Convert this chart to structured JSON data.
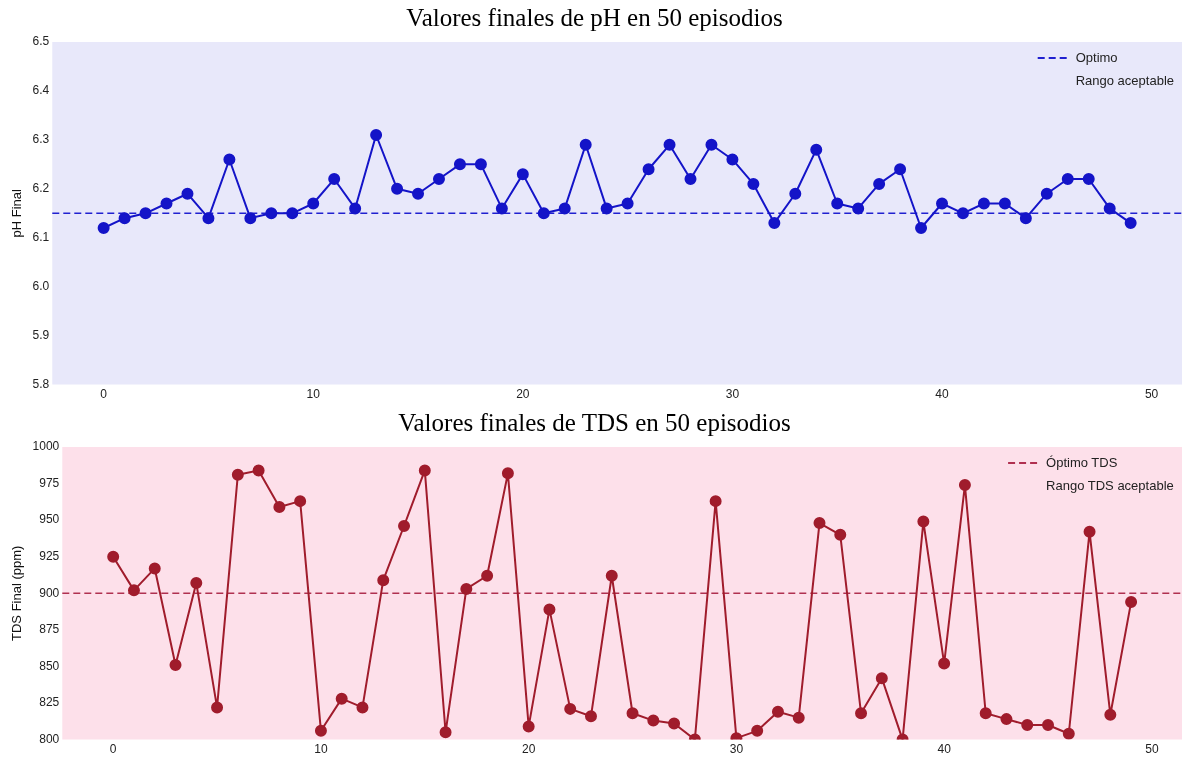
{
  "chart_data": [
    {
      "type": "line",
      "title": "Valores finales de pH en 50 episodios",
      "ylabel": "pH Final",
      "x": [
        0,
        1,
        2,
        3,
        4,
        5,
        6,
        7,
        8,
        9,
        10,
        11,
        12,
        13,
        14,
        15,
        16,
        17,
        18,
        19,
        20,
        21,
        22,
        23,
        24,
        25,
        26,
        27,
        28,
        29,
        30,
        31,
        32,
        33,
        34,
        35,
        36,
        37,
        38,
        39,
        40,
        41,
        42,
        43,
        44,
        45,
        46,
        47,
        48,
        49
      ],
      "series": [
        {
          "color": "#1414c8",
          "values": [
            6.12,
            6.14,
            6.15,
            6.17,
            6.19,
            6.14,
            6.26,
            6.14,
            6.15,
            6.15,
            6.17,
            6.22,
            6.16,
            6.31,
            6.2,
            6.19,
            6.22,
            6.25,
            6.25,
            6.16,
            6.23,
            6.15,
            6.16,
            6.29,
            6.16,
            6.17,
            6.24,
            6.29,
            6.22,
            6.29,
            6.26,
            6.21,
            6.13,
            6.19,
            6.28,
            6.17,
            6.16,
            6.21,
            6.24,
            6.12,
            6.17,
            6.15,
            6.17,
            6.17,
            6.14,
            6.19,
            6.22,
            6.22,
            6.16,
            6.13
          ]
        }
      ],
      "xlim": [
        -2.45,
        51.45
      ],
      "xticks": [
        0,
        10,
        20,
        30,
        40,
        50
      ],
      "ylim": [
        5.8,
        6.5
      ],
      "yticks": [
        5.8,
        5.9,
        {
          "value": 6.0,
          "label": "6.0"
        },
        6.1,
        6.2,
        6.3,
        6.4,
        6.5
      ],
      "ref_lines": [
        {
          "axis": "y",
          "value": 6.15,
          "label": "Optimo",
          "color": "#2020d0",
          "line_style": "dashed"
        }
      ],
      "bands": [
        {
          "axis": "y",
          "from": 5.8,
          "to": 6.5,
          "label": "Rango aceptable",
          "color": "#e8e8fa"
        }
      ],
      "grid": false,
      "legend": "top right",
      "marker": "circle",
      "line_style": "solid"
    },
    {
      "type": "line",
      "title": "Valores finales de TDS en 50 episodios",
      "ylabel": "TDS Final (ppm)",
      "x": [
        0,
        1,
        2,
        3,
        4,
        5,
        6,
        7,
        8,
        9,
        10,
        11,
        12,
        13,
        14,
        15,
        16,
        17,
        18,
        19,
        20,
        21,
        22,
        23,
        24,
        25,
        26,
        27,
        28,
        29,
        30,
        31,
        32,
        33,
        34,
        35,
        36,
        37,
        38,
        39,
        40,
        41,
        42,
        43,
        44,
        45,
        46,
        47,
        48,
        49
      ],
      "series": [
        {
          "color": "#a01c2c",
          "values": [
            925,
            902,
            917,
            851,
            907,
            822,
            981,
            984,
            959,
            963,
            806,
            828,
            822,
            909,
            946,
            984,
            805,
            903,
            912,
            982,
            809,
            889,
            821,
            816,
            912,
            818,
            813,
            811,
            800,
            963,
            801,
            806,
            819,
            815,
            948,
            940,
            818,
            842,
            800,
            949,
            852,
            974,
            818,
            814,
            810,
            810,
            804,
            942,
            817,
            894
          ]
        }
      ],
      "xlim": [
        -2.45,
        51.45
      ],
      "xticks": [
        0,
        10,
        20,
        30,
        40,
        50
      ],
      "ylim": [
        800,
        1000
      ],
      "yticks": [
        800,
        825,
        850,
        875,
        900,
        925,
        950,
        975,
        1000
      ],
      "ref_lines": [
        {
          "axis": "y",
          "value": 900,
          "label": "Óptimo TDS",
          "color": "#b03050",
          "line_style": "dashed"
        }
      ],
      "bands": [
        {
          "axis": "y",
          "from": 800,
          "to": 1000,
          "label": "Rango TDS aceptable",
          "color": "#fde0ea"
        }
      ],
      "grid": false,
      "legend": "top right",
      "marker": "circle",
      "line_style": "solid"
    }
  ]
}
